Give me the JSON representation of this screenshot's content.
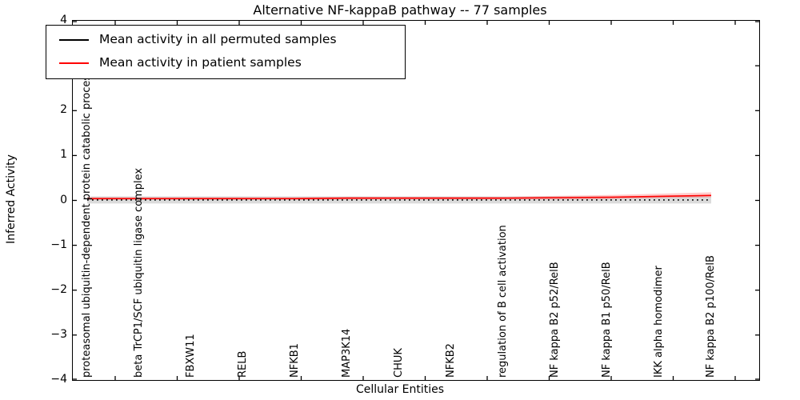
{
  "title": "Alternative NF-kappaB pathway -- 77 samples",
  "legend": {
    "items": [
      {
        "label": "Mean activity in all permuted samples",
        "color": "#000000"
      },
      {
        "label": "Mean activity in patient samples",
        "color": "#ff0000"
      }
    ]
  },
  "axes": {
    "ylabel": "Inferred Activity",
    "xlabel": "Cellular Entities",
    "ytick_labels": [
      "4",
      "3",
      "2",
      "1",
      "0",
      "−1",
      "−2",
      "−3",
      "−4"
    ],
    "ytick_values": [
      4,
      3,
      2,
      1,
      0,
      -1,
      -2,
      -3,
      -4
    ]
  },
  "chart_data": {
    "type": "line",
    "title": "Alternative NF-kappaB pathway -- 77 samples",
    "xlabel": "Cellular Entities",
    "ylabel": "Inferred Activity",
    "ylim": [
      -4,
      4
    ],
    "grid": false,
    "legend_position": "upper left",
    "categories": [
      "proteasomal ubiquitin-dependent protein catabolic process",
      "beta TrCP1/SCF ubiquitin ligase complex",
      "FBXW11",
      "RELB",
      "NFKB1",
      "MAP3K14",
      "CHUK",
      "NFKB2",
      "regulation of B cell activation",
      "NF kappa B2 p52/RelB",
      "NF kappa B1 p50/RelB",
      "IKK alpha homodimer",
      "NF kappa B2 p100/RelB"
    ],
    "series": [
      {
        "name": "Mean activity in all permuted samples",
        "color": "#000000",
        "style": "dotted",
        "values": [
          0.01,
          0.01,
          0.01,
          0.01,
          0.01,
          0.01,
          0.01,
          0.01,
          0.01,
          0.01,
          0.01,
          0.01,
          0.01
        ]
      },
      {
        "name": "Mean activity in patient samples",
        "color": "#ff0000",
        "style": "solid",
        "values": [
          0.04,
          0.04,
          0.04,
          0.04,
          0.04,
          0.05,
          0.05,
          0.05,
          0.05,
          0.06,
          0.07,
          0.09,
          0.11
        ]
      }
    ],
    "bands": [
      {
        "name": "permuted-std-band",
        "color": "rgba(0,0,0,0.14)",
        "upper": [
          0.09,
          0.09,
          0.09,
          0.09,
          0.09,
          0.09,
          0.09,
          0.09,
          0.09,
          0.09,
          0.09,
          0.09,
          0.09
        ],
        "lower": [
          -0.07,
          -0.07,
          -0.07,
          -0.07,
          -0.07,
          -0.07,
          -0.07,
          -0.07,
          -0.07,
          -0.07,
          -0.07,
          -0.07,
          -0.07
        ]
      },
      {
        "name": "patient-std-band",
        "color": "rgba(255,0,0,0.20)",
        "upper": [
          0.07,
          0.07,
          0.07,
          0.07,
          0.07,
          0.08,
          0.08,
          0.08,
          0.08,
          0.1,
          0.12,
          0.15,
          0.18
        ],
        "lower": [
          0.01,
          0.01,
          0.01,
          0.01,
          0.01,
          0.02,
          0.02,
          0.02,
          0.02,
          0.02,
          0.03,
          0.05,
          0.07
        ]
      }
    ]
  }
}
